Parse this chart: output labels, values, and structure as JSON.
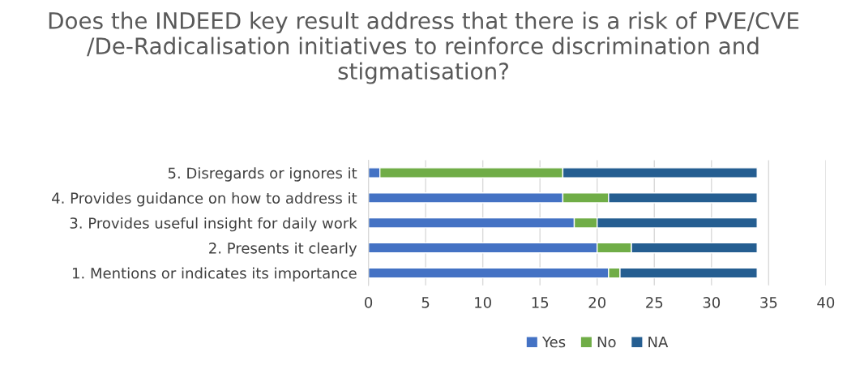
{
  "chart_data": {
    "type": "bar",
    "orientation": "horizontal",
    "stacked": true,
    "title": "Does the INDEED key result address that there is a risk of PVE/CVE /De-Radicalisation initiatives to reinforce discrimination and stigmatisation?",
    "categories": [
      "5. Disregards or ignores it",
      "4. Provides guidance on how to address it",
      "3. Provides useful insight for daily work",
      "2. Presents it clearly",
      "1. Mentions or indicates its importance"
    ],
    "series": [
      {
        "name": "Yes",
        "color": "#4472c4",
        "values": [
          1,
          17,
          18,
          20,
          21
        ]
      },
      {
        "name": "No",
        "color": "#70ad47",
        "values": [
          16,
          4,
          2,
          3,
          1
        ]
      },
      {
        "name": "NA",
        "color": "#255e91",
        "values": [
          17,
          13,
          14,
          11,
          12
        ]
      }
    ],
    "xlim": [
      0,
      40
    ],
    "xticks": [
      0,
      5,
      10,
      15,
      20,
      25,
      30,
      35,
      40
    ],
    "grid": "x",
    "legend": "bottom"
  }
}
